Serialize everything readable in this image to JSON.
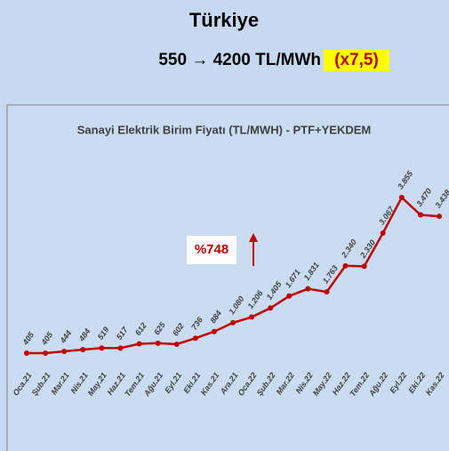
{
  "header": {
    "title": "Türkiye",
    "subtitle": "550 → 4200 TL/MWh",
    "highlight": "(x7,5)"
  },
  "chart_data": {
    "type": "line",
    "title": "Sanayi Elektrik Birim Fiyatı (TL/MWH) - PTF+YEKDEM",
    "annotation": "%748",
    "categories": [
      "Oca.21",
      "Şub.21",
      "Mar.21",
      "Nis.21",
      "May.21",
      "Haz.21",
      "Tem.21",
      "Ağu.21",
      "Eyl.21",
      "Eki.21",
      "Kas.21",
      "Ara.21",
      "Oca.22",
      "Şub.22",
      "Mar.22",
      "Nis.22",
      "May.22",
      "Haz.22",
      "Tem.22",
      "Ağu.22",
      "Eyl.22",
      "Eki.22",
      "Kas.22"
    ],
    "series": [
      {
        "name": "Sanayi Elektrik Birim Fiyatı",
        "color": "#c00000",
        "values": [
          405,
          405,
          444,
          484,
          519,
          517,
          612,
          625,
          602,
          736,
          884,
          1080,
          1206,
          1405,
          1671,
          1831,
          1763,
          2340,
          2330,
          3067,
          3855,
          3470,
          3438
        ],
        "value_labels": [
          "405",
          "405",
          "444",
          "484",
          "519",
          "517",
          "612",
          "625",
          "602",
          "736",
          "884",
          "1.080",
          "1.206",
          "1.405",
          "1.671",
          "1.831",
          "1.763",
          "2.340",
          "2.330",
          "3.067",
          "3.855",
          "3.470",
          "3.438"
        ]
      }
    ]
  }
}
